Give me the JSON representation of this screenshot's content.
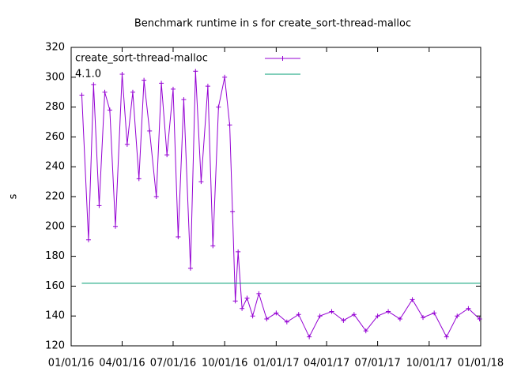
{
  "chart_data": {
    "type": "line",
    "title": "Benchmark runtime in s for create_sort-thread-malloc",
    "y_label": "s",
    "x": [
      "2016-01-20",
      "2016-02-01",
      "2016-02-10",
      "2016-02-20",
      "2016-03-01",
      "2016-03-10",
      "2016-03-20",
      "2016-04-01",
      "2016-04-10",
      "2016-04-20",
      "2016-05-01",
      "2016-05-10",
      "2016-05-20",
      "2016-06-01",
      "2016-06-10",
      "2016-06-20",
      "2016-07-01",
      "2016-07-10",
      "2016-07-20",
      "2016-08-01",
      "2016-08-10",
      "2016-08-20",
      "2016-09-01",
      "2016-09-10",
      "2016-09-20",
      "2016-10-01",
      "2016-10-10",
      "2016-10-15",
      "2016-10-20",
      "2016-10-25",
      "2016-11-01",
      "2016-11-10",
      "2016-11-20",
      "2016-12-01",
      "2016-12-15",
      "2017-01-01",
      "2017-01-20",
      "2017-02-10",
      "2017-03-01",
      "2017-03-20",
      "2017-04-10",
      "2017-05-01",
      "2017-05-20",
      "2017-06-10",
      "2017-07-01",
      "2017-07-20",
      "2017-08-10",
      "2017-09-01",
      "2017-09-20",
      "2017-10-10",
      "2017-11-01",
      "2017-11-20",
      "2017-12-10",
      "2017-12-30"
    ],
    "series": [
      {
        "name": "create_sort-thread-malloc",
        "color": "#9400d3",
        "marker": "plus",
        "values": [
          288,
          191,
          295,
          214,
          290,
          278,
          200,
          302,
          255,
          290,
          232,
          298,
          264,
          220,
          296,
          248,
          292,
          193,
          285,
          172,
          304,
          230,
          294,
          187,
          280,
          300,
          268,
          210,
          150,
          183,
          145,
          152,
          140,
          155,
          138,
          142,
          136,
          141,
          126,
          140,
          143,
          137,
          141,
          130,
          140,
          143,
          138,
          151,
          139,
          142,
          126,
          140,
          145,
          138
        ]
      },
      {
        "name": "4.1.0",
        "color": "#009e73",
        "x": [
          "2016-01-20",
          "2017-12-31"
        ],
        "values": [
          162,
          162
        ]
      }
    ],
    "xlim": [
      "2016-01-01",
      "2018-01-01"
    ],
    "xticks": [
      {
        "value": "2016-01-01",
        "label": "01/01/16"
      },
      {
        "value": "2016-04-01",
        "label": "04/01/16"
      },
      {
        "value": "2016-07-01",
        "label": "07/01/16"
      },
      {
        "value": "2016-10-01",
        "label": "10/01/16"
      },
      {
        "value": "2017-01-01",
        "label": "01/01/17"
      },
      {
        "value": "2017-04-01",
        "label": "04/01/17"
      },
      {
        "value": "2017-07-01",
        "label": "07/01/17"
      },
      {
        "value": "2017-10-01",
        "label": "10/01/17"
      },
      {
        "value": "2018-01-01",
        "label": "01/01/18"
      }
    ],
    "ylim": [
      120,
      320
    ],
    "yticks": [
      120,
      140,
      160,
      180,
      200,
      220,
      240,
      260,
      280,
      300,
      320
    ]
  }
}
